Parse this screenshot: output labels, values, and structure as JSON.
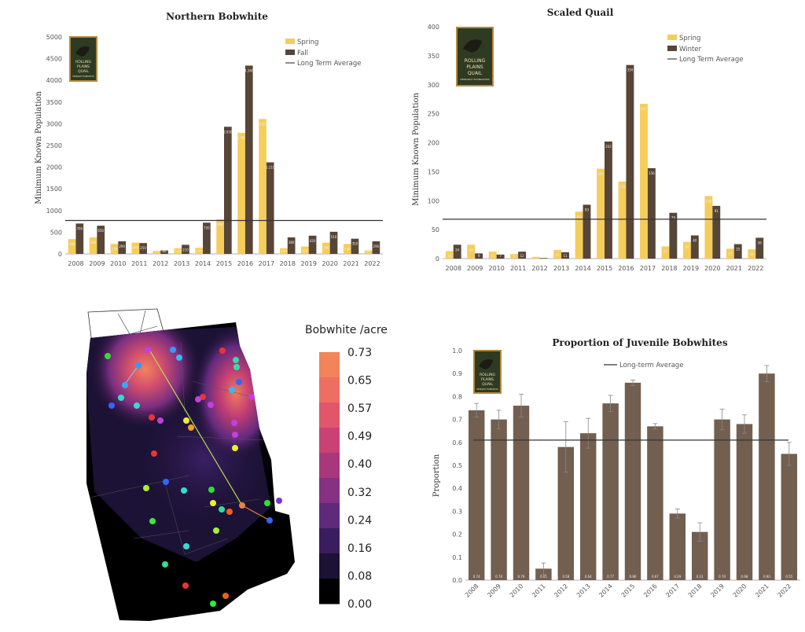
{
  "colors": {
    "spring": "#f5cd5a",
    "fall": "#574537",
    "winter": "#574537",
    "juvenile": "#725f50",
    "average": "#333333",
    "logo_bg": "#2f3a22",
    "logo_border": "#b48a3c"
  },
  "logo": {
    "line1": "ROLLING",
    "line2": "PLAINS",
    "line3": "QUAIL",
    "line4": "RESEARCH FOUNDATION"
  },
  "charts": [
    {
      "type": "bar",
      "title": "Northern Bobwhite",
      "ylabel": "Minimum Known Population",
      "ylim": [
        0,
        5000
      ],
      "yticks": [
        0,
        500,
        1000,
        1500,
        2000,
        2500,
        3000,
        3500,
        4000,
        4500,
        5000
      ],
      "categories": [
        "2008",
        "2009",
        "2010",
        "2011",
        "2012",
        "2013",
        "2014",
        "2015",
        "2016",
        "2017",
        "2018",
        "2019",
        "2020",
        "2021",
        "2022"
      ],
      "series": [
        {
          "name": "Spring",
          "values": [
            340,
            380,
            230,
            260,
            70,
            130,
            140,
            800,
            2790,
            3110,
            130,
            170,
            260,
            230,
            80
          ]
        },
        {
          "name": "Fall",
          "values": [
            700,
            650,
            290,
            250,
            80,
            210,
            720,
            2930,
            4340,
            2110,
            380,
            420,
            510,
            350,
            290
          ]
        }
      ],
      "average": {
        "label": "Long Term Average",
        "value": 770
      }
    },
    {
      "type": "bar",
      "title": "Scaled Quail",
      "ylabel": "Minimum Known Population",
      "ylim": [
        0,
        400
      ],
      "yticks": [
        0,
        50,
        100,
        150,
        200,
        250,
        300,
        350,
        400
      ],
      "categories": [
        "2008",
        "2009",
        "2010",
        "2011",
        "2012",
        "2013",
        "2014",
        "2015",
        "2016",
        "2017",
        "2018",
        "2019",
        "2020",
        "2021",
        "2022"
      ],
      "series": [
        {
          "name": "Spring",
          "values": [
            13,
            24,
            12,
            8,
            3,
            15,
            81,
            155,
            133,
            267,
            21,
            29,
            108,
            17,
            16
          ]
        },
        {
          "name": "Winter",
          "values": [
            24,
            9,
            7,
            12,
            1,
            11,
            93,
            202,
            334,
            156,
            79,
            40,
            91,
            25,
            36
          ]
        }
      ],
      "average": {
        "label": "Long Term Average",
        "value": 68
      }
    },
    {
      "type": "bar",
      "title": "Proportion of Juvenile Bobwhites",
      "ylabel": "Proportion",
      "ylim": [
        0,
        1.0
      ],
      "yticks": [
        "0.0",
        "0.1",
        "0.2",
        "0.3",
        "0.4",
        "0.5",
        "0.6",
        "0.7",
        "0.8",
        "0.9",
        "1.0"
      ],
      "categories": [
        "2008",
        "2009",
        "2010",
        "2011",
        "2012",
        "2013",
        "2014",
        "2015",
        "2016",
        "2017",
        "2018",
        "2019",
        "2020",
        "2021",
        "2022"
      ],
      "series": [
        {
          "values": [
            0.74,
            0.7,
            0.76,
            0.05,
            0.58,
            0.64,
            0.77,
            0.86,
            0.67,
            0.29,
            0.21,
            0.7,
            0.68,
            0.9,
            0.55
          ],
          "labels": [
            "0.74",
            "0.70",
            "0.76",
            "0.05",
            "0.58",
            "0.64",
            "0.77",
            "0.86",
            "0.67",
            "0.29",
            "0.21",
            "0.70",
            "0.68",
            "0.90",
            "0.55"
          ],
          "errors": [
            0.03,
            0.04,
            0.05,
            0.025,
            0.11,
            0.065,
            0.035,
            0.012,
            0.012,
            0.02,
            0.04,
            0.045,
            0.04,
            0.035,
            0.05
          ]
        }
      ],
      "average": {
        "label": "Long-term Average",
        "value": 0.61
      }
    }
  ],
  "heatmap": {
    "colorbar_title": "Bobwhite /acre",
    "colorbar_ticks": [
      "0.73",
      "0.65",
      "0.57",
      "0.49",
      "0.40",
      "0.32",
      "0.24",
      "0.16",
      "0.08",
      "0.00"
    ],
    "colorbar_colors": [
      "#f2845a",
      "#ee6e64",
      "#e0566b",
      "#c94275",
      "#a9377c",
      "#863181",
      "#5e2a7c",
      "#3a1d5e",
      "#1c1235",
      "#000000"
    ]
  }
}
